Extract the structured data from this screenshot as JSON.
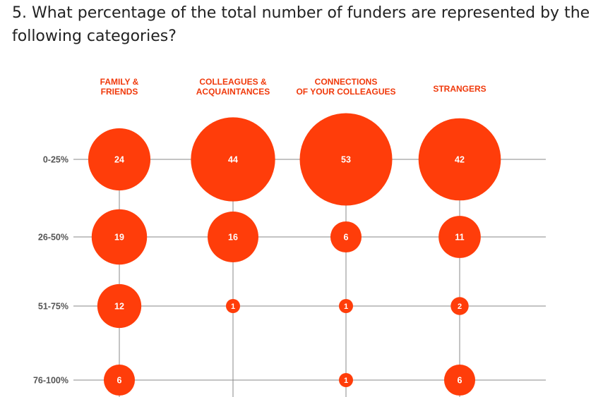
{
  "question": "5. What percentage of the total number of funders are represented by the following categories?",
  "colors": {
    "bubble": "#ff3d0a",
    "grid": "#8a8a8a",
    "column_label": "#f0390b",
    "row_label": "#555555"
  },
  "chart_data": {
    "type": "bubble",
    "columns": [
      [
        "FAMILY &",
        "FRIENDS"
      ],
      [
        "COLLEAGUES &",
        "ACQUAINTANCES"
      ],
      [
        "CONNECTIONS",
        "OF YOUR COLLEAGUES"
      ],
      [
        "STRANGERS"
      ]
    ],
    "rows": [
      "0-25%",
      "26-50%",
      "51-75%",
      "76-100%"
    ],
    "values": [
      [
        24,
        44,
        53,
        42
      ],
      [
        19,
        16,
        6,
        11
      ],
      [
        12,
        1,
        1,
        2
      ],
      [
        6,
        null,
        1,
        6
      ]
    ]
  }
}
